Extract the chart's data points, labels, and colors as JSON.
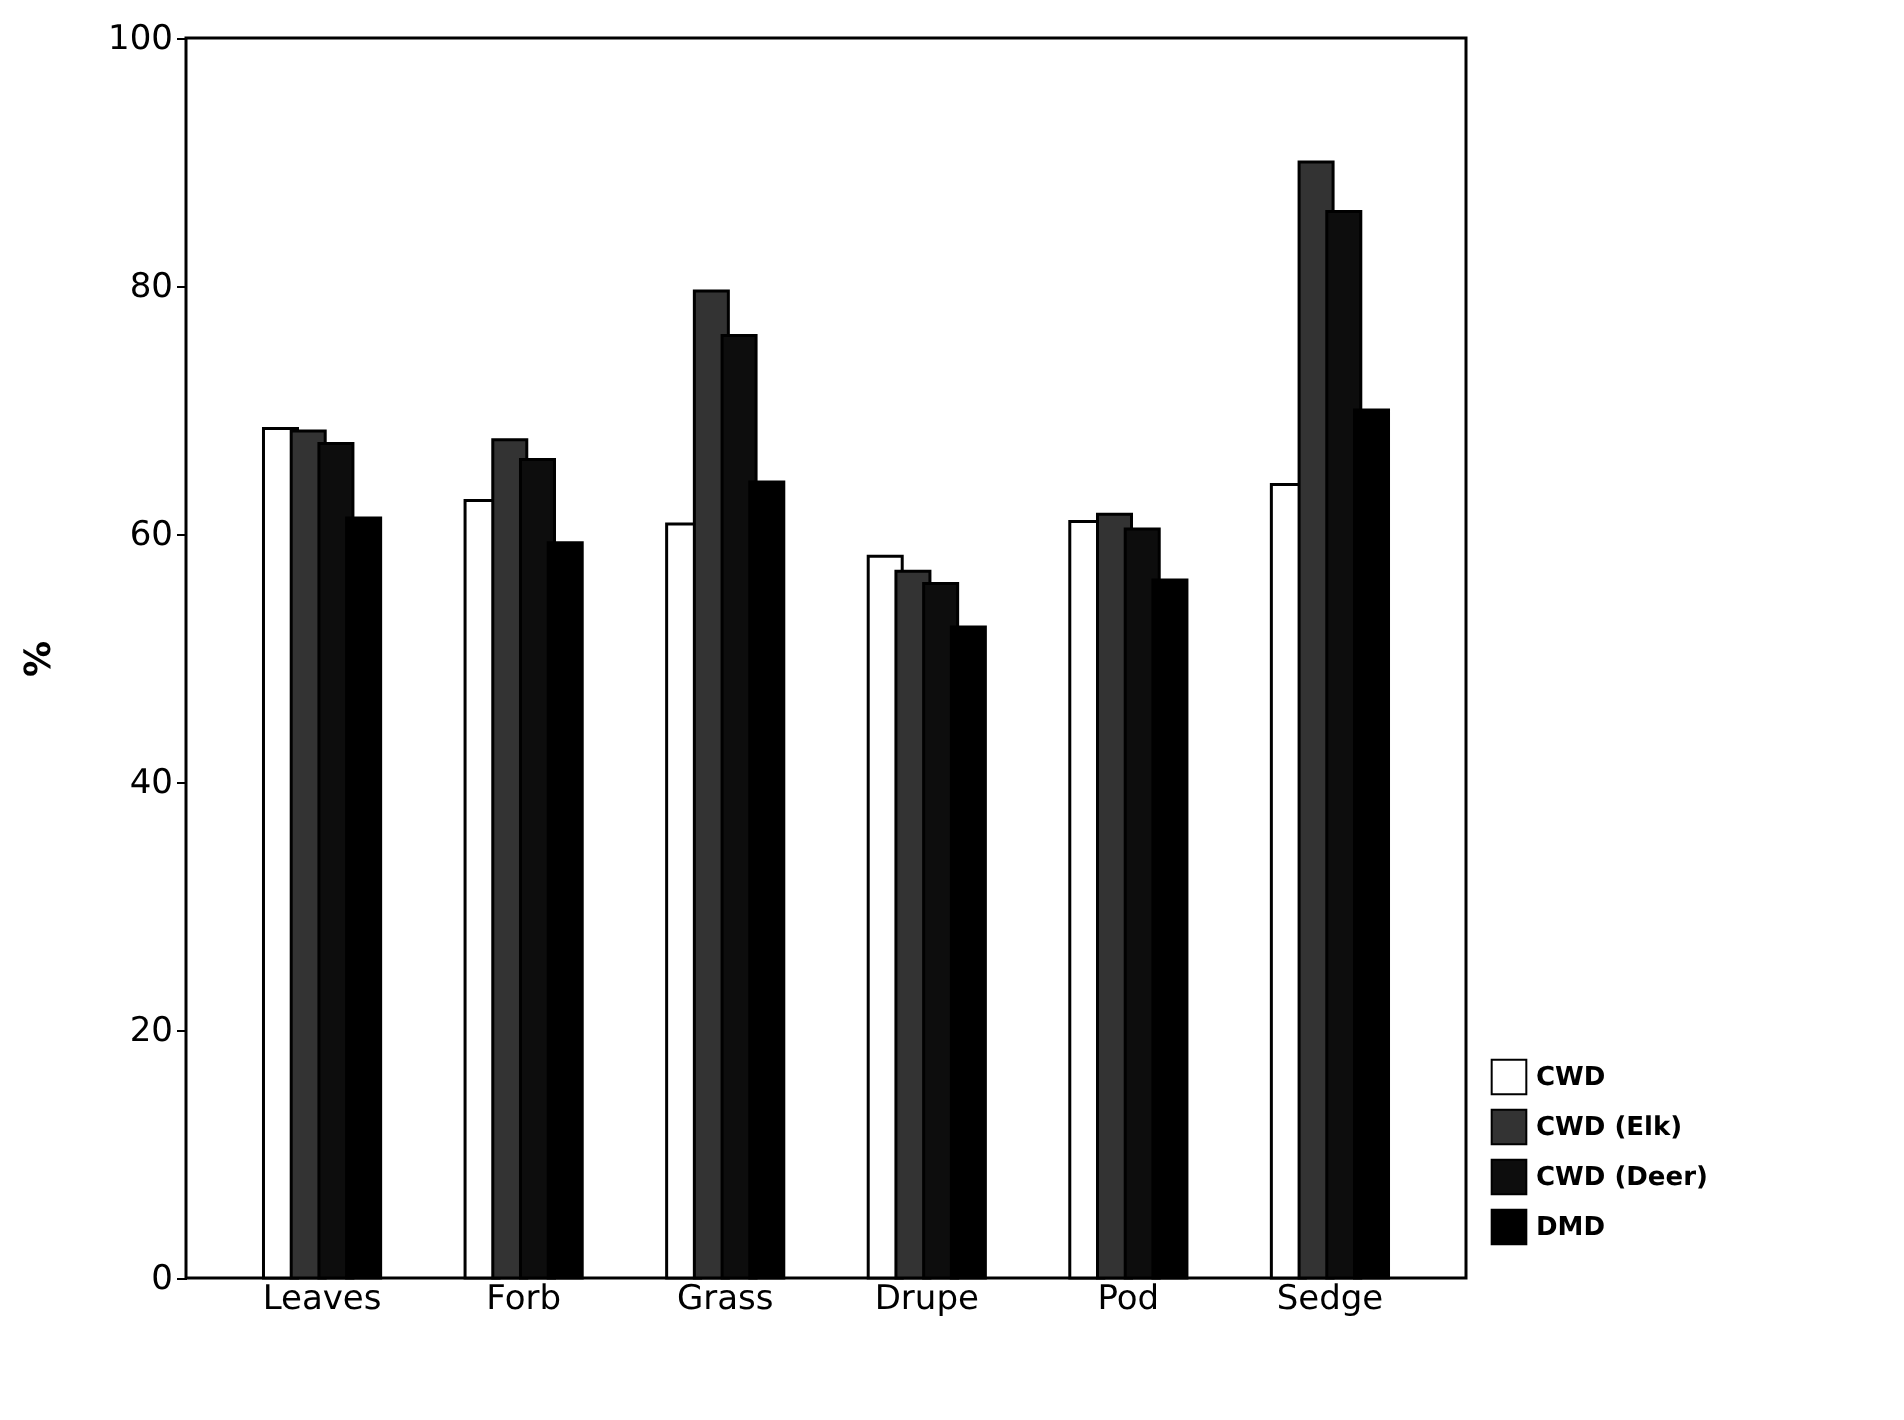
{
  "chart_data": {
    "type": "bar",
    "ylabel": "%",
    "categories": [
      "Leaves",
      "Forb",
      "Grass",
      "Drupe",
      "Pod",
      "Sedge"
    ],
    "series": [
      {
        "name": "CWD",
        "color": "#ffffff",
        "values": [
          68.5,
          62.7,
          60.8,
          58.2,
          61.0,
          64.0
        ]
      },
      {
        "name": "CWD (Elk)",
        "color": "#333333",
        "values": [
          68.3,
          67.6,
          79.6,
          57.0,
          61.6,
          90.0
        ]
      },
      {
        "name": "CWD (Deer)",
        "color": "#0d0d0d",
        "values": [
          67.3,
          66.0,
          76.0,
          56.0,
          60.4,
          86.0
        ]
      },
      {
        "name": "DMD",
        "color": "#000000",
        "values": [
          61.3,
          59.3,
          64.2,
          52.5,
          56.3,
          70.0
        ]
      }
    ],
    "ylim": [
      0,
      100
    ],
    "yticks": [
      0,
      20,
      40,
      60,
      80,
      100
    ],
    "grid": false,
    "legend": "bottom right"
  }
}
